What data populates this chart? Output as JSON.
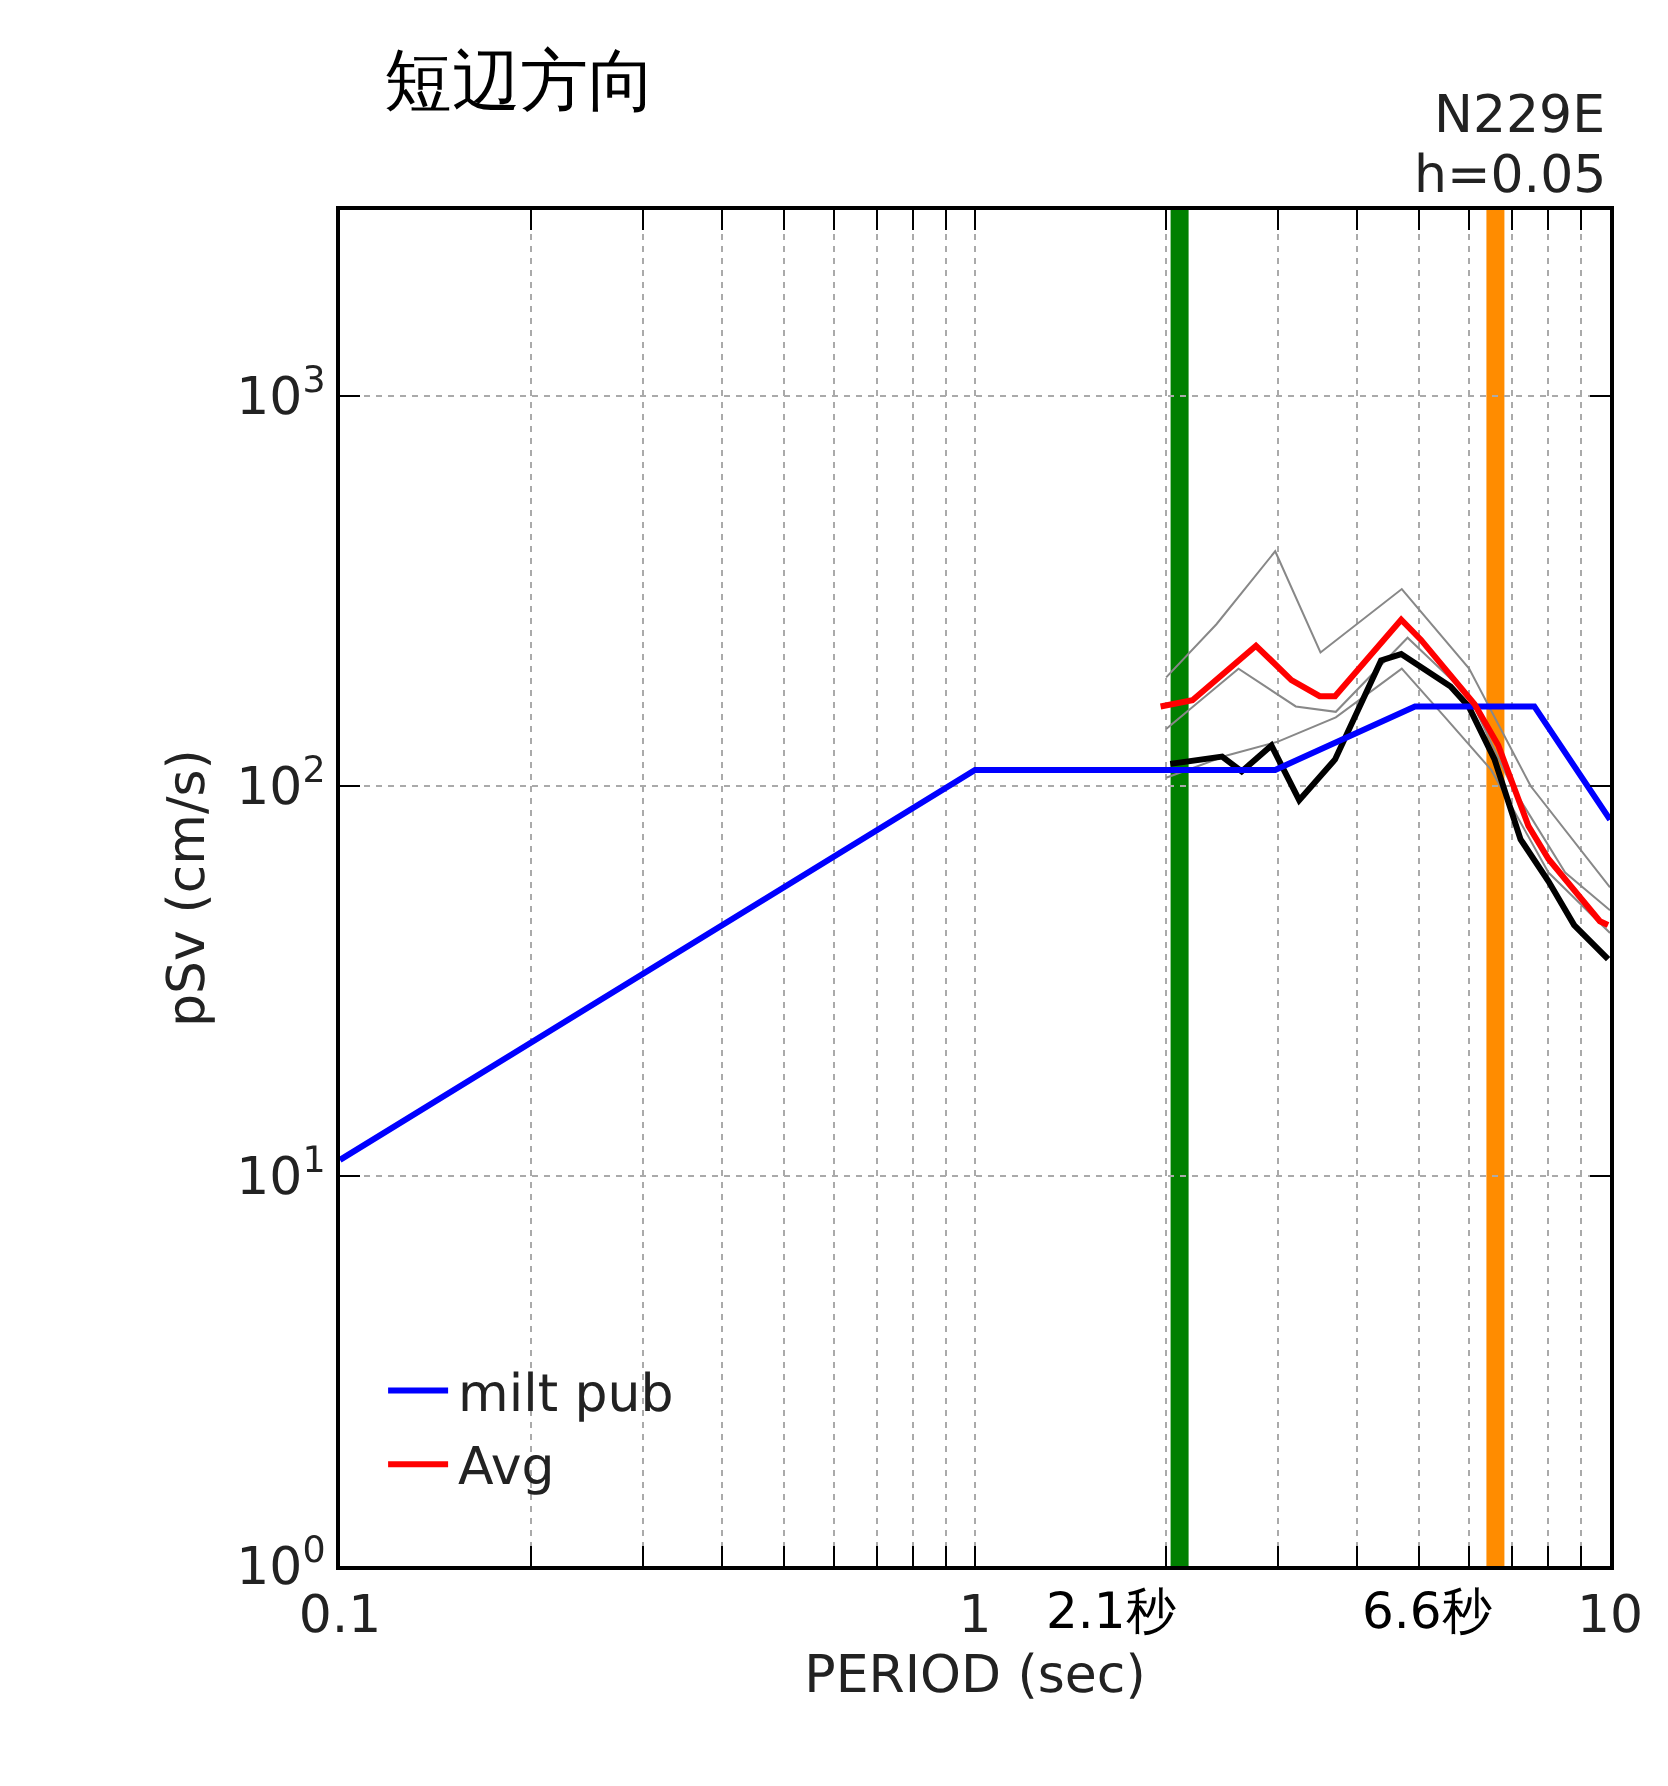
{
  "chart_data": {
    "type": "line",
    "title": "短辺方向",
    "xlabel": "PERIOD (sec)",
    "ylabel": "pSv (cm/s)",
    "annotations": [
      "N229E",
      "h=0.05"
    ],
    "log": "xy",
    "grid": true,
    "legend": "bottom left",
    "marker": "none",
    "line_style": "solid",
    "xlim": [
      0.1,
      10
    ],
    "ylim": [
      1,
      3000
    ],
    "xticks": [
      0.1,
      {
        "value": 0.2,
        "label": null
      },
      {
        "value": 0.3,
        "label": null
      },
      {
        "value": 0.4,
        "label": null
      },
      {
        "value": 0.5,
        "label": null
      },
      {
        "value": 0.6,
        "label": null
      },
      {
        "value": 0.7,
        "label": null
      },
      {
        "value": 0.8,
        "label": null
      },
      {
        "value": 0.9,
        "label": null
      },
      1,
      {
        "value": 2,
        "label": null
      },
      {
        "value": 3,
        "label": null
      },
      {
        "value": 4,
        "label": null
      },
      {
        "value": 5,
        "label": null
      },
      {
        "value": 6,
        "label": null
      },
      {
        "value": 7,
        "label": null
      },
      {
        "value": 8,
        "label": null
      },
      {
        "value": 9,
        "label": null
      },
      10
    ],
    "yticks": [
      {
        "value": 1,
        "label": "10$^{0}$"
      },
      {
        "value": 10,
        "label": "10$^{1}$"
      },
      {
        "value": 100,
        "label": "10$^{2}$"
      },
      {
        "value": 1000,
        "label": "10$^{3}$"
      }
    ],
    "ref_lines": [
      {
        "axis": "x",
        "value": 2.1,
        "label": "2.1秒",
        "color": "#008000"
      },
      {
        "axis": "x",
        "value": 6.6,
        "label": "6.6秒",
        "color": "#ff8c00"
      }
    ],
    "series": [
      {
        "color": "#888888",
        "x": [
          2.0,
          2.4,
          2.97,
          3.5,
          4.7,
          6.0,
          7.5,
          10
        ],
        "values": [
          190,
          260,
          400,
          220,
          320,
          200,
          100,
          55
        ]
      },
      {
        "color": "#888888",
        "x": [
          2.0,
          2.5,
          3.0,
          3.7,
          4.7,
          5.5,
          6.5,
          8,
          10
        ],
        "values": [
          105,
          120,
          130,
          150,
          200,
          150,
          110,
          60,
          42
        ]
      },
      {
        "color": "#888888",
        "x": [
          2.0,
          2.6,
          3.2,
          3.7,
          4.8,
          6.0,
          7.0,
          8.5,
          10
        ],
        "values": [
          140,
          200,
          160,
          155,
          240,
          170,
          100,
          60,
          48
        ]
      },
      {
        "color": "#000000",
        "x": [
          2.03,
          2.45,
          2.63,
          2.93,
          3.24,
          3.69,
          4.36,
          4.69,
          5.61,
          5.99,
          6.58,
          7.23,
          8.0,
          8.78,
          9.93
        ],
        "values": [
          114,
          119,
          109,
          127,
          92,
          117,
          210,
          218,
          180,
          160,
          117,
          73,
          57,
          44,
          36
        ]
      },
      {
        "name": "milt pub",
        "color": "#0000ff",
        "x": [
          0.1,
          1,
          2.97,
          4.93,
          7.6,
          10
        ],
        "values": [
          11,
          110,
          110,
          160,
          160,
          82
        ]
      },
      {
        "name": "Avg",
        "color": "#ff0000",
        "x": [
          1.96,
          2.2,
          2.77,
          3.15,
          3.49,
          3.69,
          4.69,
          5.04,
          6.12,
          6.67,
          7.44,
          8.0,
          9.64,
          9.93
        ],
        "values": [
          160,
          166,
          229,
          187,
          170,
          170,
          267,
          237,
          162,
          127,
          79,
          65,
          45,
          44
        ]
      }
    ]
  }
}
